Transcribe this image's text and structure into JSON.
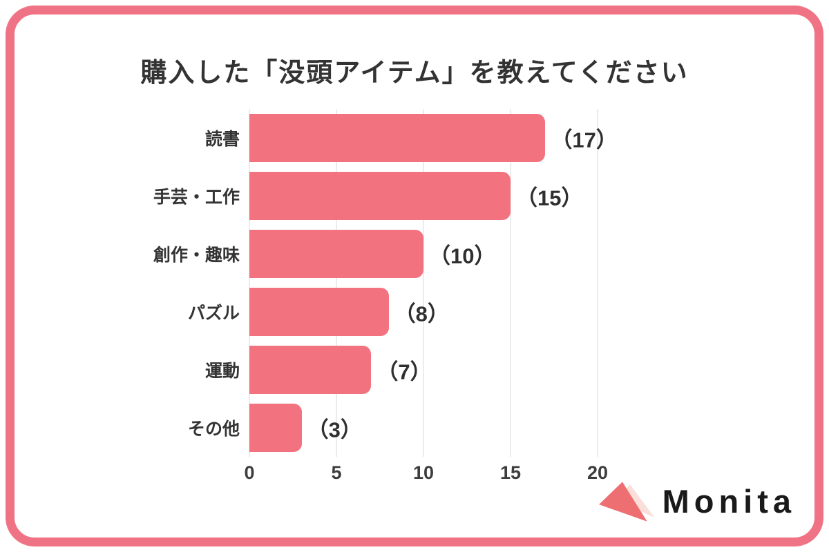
{
  "title": "購入した「没頭アイテム」を教えてください",
  "brand": {
    "name": "Monita"
  },
  "colors": {
    "frame": "#ef7384",
    "bar": "#f2737f",
    "grid": "#ececec",
    "title_text": "#333333",
    "logo_triangle": "#ed6f72",
    "logo_triangle_light": "#f9ded9",
    "brand_text": "#1a1a1a"
  },
  "chart_data": {
    "type": "bar",
    "orientation": "horizontal",
    "title": "購入した「没頭アイテム」を教えてください",
    "categories": [
      "読書",
      "手芸・工作",
      "創作・趣味",
      "パズル",
      "運動",
      "その他"
    ],
    "values": [
      17,
      15,
      10,
      8,
      7,
      3
    ],
    "value_labels": [
      "（17）",
      "（15）",
      "（10）",
      "（8）",
      "（7）",
      "（3）"
    ],
    "xlabel": "",
    "ylabel": "",
    "xlim": [
      0,
      20
    ],
    "xticks": [
      0,
      5,
      10,
      15,
      20
    ],
    "grid": "vertical-only",
    "legend": "none",
    "bar_color": "#f2737f"
  }
}
